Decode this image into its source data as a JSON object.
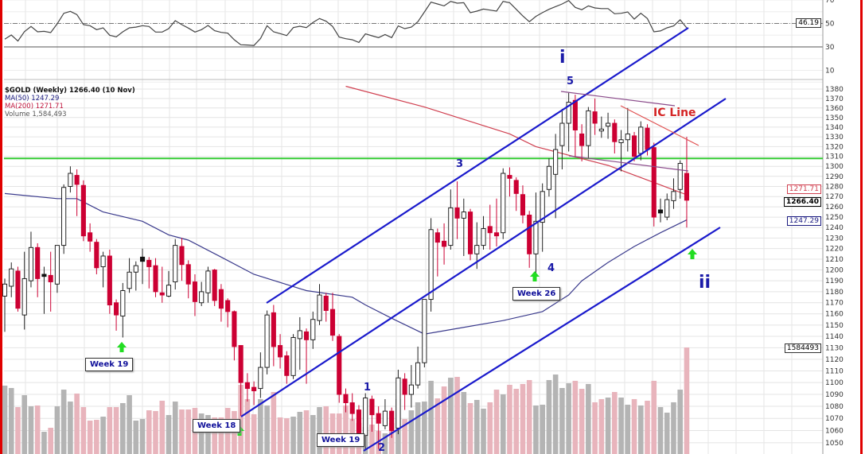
{
  "legend": {
    "title": "$GOLD (Weekly) 1266.40 (10 Nov)",
    "ma50": "MA(50) 1247.29",
    "ma200": "MA(200) 1271.71",
    "volume": "Volume 1,584,493"
  },
  "colors": {
    "up_candle": "#ffffff",
    "down_candle": "#cc0033",
    "ma50": "#3a3a8c",
    "ma200": "#d04050",
    "channel": "#1a1acc",
    "resistance": "#33cc33",
    "ic_line": "#e05050",
    "triangle": "#8a4a8a",
    "volume_up": "#b4b4b4",
    "volume_down": "#e8b4bc",
    "border": "#e00000"
  },
  "annotations": {
    "wave_i": "i",
    "wave_5": "5",
    "wave_3": "3",
    "wave_1": "1",
    "wave_2": "2",
    "wave_4": "4",
    "wave_ii": "ii",
    "ic_line": "IC Line",
    "week19a": "Week 19",
    "week18": "Week 18",
    "week19b": "Week 19",
    "week26": "Week 26"
  },
  "value_labels": {
    "rsi": "46.19",
    "ma200": "1271.71",
    "close": "1266.40",
    "ma50": "1247.29",
    "volume": "1584493"
  },
  "chart_data": {
    "type": "candlestick",
    "title": "$GOLD (Weekly) 1266.40 (10 Nov)",
    "price_axis": {
      "scale": "log",
      "range": [
        1045,
        1385
      ],
      "ticks": [
        1380,
        1370,
        1360,
        1350,
        1340,
        1330,
        1320,
        1310,
        1300,
        1290,
        1280,
        1270,
        1260,
        1250,
        1240,
        1230,
        1220,
        1210,
        1200,
        1190,
        1180,
        1170,
        1160,
        1150,
        1140,
        1130,
        1120,
        1110,
        1100,
        1090,
        1080,
        1070,
        1060,
        1050
      ]
    },
    "rsi_axis": {
      "ticks": [
        70,
        50,
        30,
        10
      ]
    },
    "grid": true,
    "legend_position": "top-left",
    "ohlc": [
      [
        1176,
        1192,
        1144,
        1187
      ],
      [
        1185,
        1207,
        1175,
        1201
      ],
      [
        1199,
        1203,
        1162,
        1165
      ],
      [
        1159,
        1217,
        1146,
        1192
      ],
      [
        1190,
        1236,
        1184,
        1221
      ],
      [
        1221,
        1225,
        1175,
        1192
      ],
      [
        1196,
        1203,
        1160,
        1194
      ],
      [
        1195,
        1217,
        1162,
        1189
      ],
      [
        1187,
        1223,
        1179,
        1223
      ],
      [
        1223,
        1282,
        1215,
        1279
      ],
      [
        1280,
        1300,
        1274,
        1293
      ],
      [
        1291,
        1297,
        1251,
        1282
      ],
      [
        1281,
        1286,
        1227,
        1232
      ],
      [
        1235,
        1244,
        1217,
        1227
      ],
      [
        1226,
        1229,
        1196,
        1202
      ],
      [
        1203,
        1217,
        1184,
        1213
      ],
      [
        1213,
        1219,
        1160,
        1168
      ],
      [
        1170,
        1173,
        1145,
        1159
      ],
      [
        1158,
        1188,
        1139,
        1181
      ],
      [
        1183,
        1211,
        1179,
        1198
      ],
      [
        1198,
        1208,
        1181,
        1204
      ],
      [
        1212,
        1220,
        1187,
        1208
      ],
      [
        1209,
        1212,
        1183,
        1203
      ],
      [
        1204,
        1211,
        1175,
        1180
      ],
      [
        1179,
        1203,
        1170,
        1177
      ],
      [
        1176,
        1199,
        1175,
        1186
      ],
      [
        1189,
        1229,
        1182,
        1223
      ],
      [
        1222,
        1230,
        1190,
        1205
      ],
      [
        1205,
        1209,
        1174,
        1187
      ],
      [
        1189,
        1196,
        1158,
        1171
      ],
      [
        1170,
        1189,
        1167,
        1180
      ],
      [
        1179,
        1203,
        1170,
        1199
      ],
      [
        1200,
        1201,
        1167,
        1172
      ],
      [
        1182,
        1187,
        1153,
        1165
      ],
      [
        1172,
        1174,
        1148,
        1162
      ],
      [
        1162,
        1163,
        1119,
        1131
      ],
      [
        1132,
        1132,
        1072,
        1100
      ],
      [
        1100,
        1108,
        1084,
        1095
      ],
      [
        1096,
        1101,
        1081,
        1093
      ],
      [
        1095,
        1126,
        1087,
        1113
      ],
      [
        1113,
        1163,
        1107,
        1159
      ],
      [
        1161,
        1168,
        1114,
        1131
      ],
      [
        1132,
        1142,
        1112,
        1122
      ],
      [
        1123,
        1127,
        1099,
        1106
      ],
      [
        1106,
        1142,
        1103,
        1139
      ],
      [
        1138,
        1157,
        1111,
        1145
      ],
      [
        1144,
        1147,
        1099,
        1137
      ],
      [
        1137,
        1162,
        1129,
        1155
      ],
      [
        1154,
        1187,
        1150,
        1177
      ],
      [
        1176,
        1179,
        1153,
        1163
      ],
      [
        1164,
        1179,
        1136,
        1141
      ],
      [
        1140,
        1142,
        1083,
        1090
      ],
      [
        1090,
        1095,
        1075,
        1083
      ],
      [
        1083,
        1091,
        1068,
        1074
      ],
      [
        1077,
        1081,
        1049,
        1056
      ],
      [
        1056,
        1091,
        1045,
        1087
      ],
      [
        1086,
        1089,
        1059,
        1073
      ],
      [
        1074,
        1080,
        1045,
        1066
      ],
      [
        1064,
        1086,
        1061,
        1076
      ],
      [
        1076,
        1079,
        1054,
        1060
      ],
      [
        1062,
        1111,
        1057,
        1104
      ],
      [
        1103,
        1108,
        1077,
        1090
      ],
      [
        1090,
        1115,
        1079,
        1098
      ],
      [
        1098,
        1131,
        1095,
        1117
      ],
      [
        1117,
        1173,
        1113,
        1173
      ],
      [
        1173,
        1249,
        1162,
        1238
      ],
      [
        1235,
        1239,
        1194,
        1226
      ],
      [
        1227,
        1244,
        1205,
        1222
      ],
      [
        1223,
        1277,
        1219,
        1259
      ],
      [
        1259,
        1285,
        1229,
        1249
      ],
      [
        1249,
        1268,
        1213,
        1255
      ],
      [
        1255,
        1258,
        1209,
        1215
      ],
      [
        1215,
        1245,
        1201,
        1223
      ],
      [
        1223,
        1251,
        1219,
        1239
      ],
      [
        1241,
        1262,
        1219,
        1235
      ],
      [
        1235,
        1268,
        1222,
        1232
      ],
      [
        1235,
        1298,
        1229,
        1293
      ],
      [
        1291,
        1299,
        1270,
        1288
      ],
      [
        1286,
        1289,
        1256,
        1273
      ],
      [
        1272,
        1281,
        1244,
        1252
      ],
      [
        1252,
        1256,
        1202,
        1215
      ],
      [
        1215,
        1274,
        1196,
        1246
      ],
      [
        1245,
        1283,
        1217,
        1275
      ],
      [
        1277,
        1308,
        1270,
        1300
      ],
      [
        1292,
        1333,
        1249,
        1317
      ],
      [
        1321,
        1359,
        1297,
        1344
      ],
      [
        1344,
        1376,
        1315,
        1366
      ],
      [
        1368,
        1374,
        1309,
        1337
      ],
      [
        1333,
        1343,
        1305,
        1321
      ],
      [
        1321,
        1361,
        1308,
        1357
      ],
      [
        1356,
        1370,
        1332,
        1344
      ],
      [
        1336,
        1351,
        1329,
        1338
      ],
      [
        1341,
        1355,
        1328,
        1344
      ],
      [
        1344,
        1348,
        1313,
        1325
      ],
      [
        1324,
        1337,
        1295,
        1327
      ],
      [
        1327,
        1360,
        1315,
        1333
      ],
      [
        1331,
        1335,
        1305,
        1310
      ],
      [
        1313,
        1346,
        1306,
        1340
      ],
      [
        1339,
        1343,
        1311,
        1317
      ],
      [
        1319,
        1324,
        1241,
        1250
      ],
      [
        1257,
        1268,
        1245,
        1254
      ],
      [
        1250,
        1273,
        1247,
        1267
      ],
      [
        1266,
        1288,
        1258,
        1275
      ],
      [
        1277,
        1306,
        1268,
        1303
      ],
      [
        1293,
        1330,
        1240,
        1266.4
      ]
    ],
    "volume": [
      1021000,
      986000,
      704000,
      880000,
      716000,
      728000,
      340000,
      399000,
      716000,
      962000,
      786000,
      904000,
      704000,
      505000,
      516000,
      563000,
      704000,
      704000,
      763000,
      880000,
      505000,
      528000,
      657000,
      646000,
      798000,
      587000,
      786000,
      669000,
      669000,
      692000,
      610000,
      587000,
      552000,
      552000,
      692000,
      646000,
      1033000,
      822000,
      599000,
      822000,
      728000,
      927000,
      552000,
      540000,
      563000,
      634000,
      657000,
      587000,
      704000,
      716000,
      610000,
      610000,
      728000,
      528000,
      469000,
      411000,
      446000,
      352000,
      317000,
      469000,
      822000,
      528000,
      657000,
      775000,
      786000,
      1092000,
      833000,
      1009000,
      1138000,
      1150000,
      927000,
      763000,
      810000,
      681000,
      775000,
      962000,
      892000,
      1033000,
      974000,
      1045000,
      1103000,
      728000,
      739000,
      1103000,
      1185000,
      986000,
      1056000,
      1092000,
      974000,
      1045000,
      775000,
      822000,
      845000,
      927000,
      845000,
      739000,
      822000,
      728000,
      798000,
      1092000,
      704000,
      622000,
      775000,
      962000,
      1584493
    ],
    "ma50": [
      [
        0,
        1273
      ],
      [
        8,
        1268
      ],
      [
        11,
        1268
      ],
      [
        15,
        1255
      ],
      [
        21,
        1246
      ],
      [
        25,
        1233
      ],
      [
        28,
        1228
      ],
      [
        33,
        1212
      ],
      [
        38,
        1196
      ],
      [
        46,
        1181
      ],
      [
        53,
        1175
      ],
      [
        55,
        1168
      ],
      [
        59,
        1156
      ],
      [
        64,
        1142
      ],
      [
        69,
        1147
      ],
      [
        76,
        1154
      ],
      [
        82,
        1162
      ],
      [
        86,
        1177
      ],
      [
        88,
        1190
      ],
      [
        92,
        1207
      ],
      [
        96,
        1222
      ],
      [
        100,
        1235
      ],
      [
        104,
        1247.29
      ]
    ],
    "ma200": [
      [
        52,
        1383
      ],
      [
        64,
        1361
      ],
      [
        77,
        1333
      ],
      [
        81,
        1320
      ],
      [
        92,
        1301
      ],
      [
        101,
        1279
      ],
      [
        104,
        1271.71
      ]
    ],
    "rsi": [
      36.6,
      40.2,
      35.0,
      43,
      47.4,
      42.9,
      43.3,
      42.2,
      49.7,
      58.7,
      60.3,
      57.6,
      49.0,
      48.1,
      44.7,
      46.3,
      40.0,
      38.6,
      42.9,
      46.3,
      46.9,
      48.1,
      47.4,
      42.7,
      42.7,
      45.6,
      52.4,
      49.0,
      46.1,
      42.7,
      44.7,
      48.3,
      43.8,
      42.4,
      41.7,
      36.1,
      31.8,
      31.6,
      31.2,
      37.2,
      48.1,
      42.9,
      41.3,
      39.7,
      46.5,
      47.6,
      46.5,
      50.8,
      54.2,
      51.9,
      47.4,
      38.4,
      37.0,
      36.1,
      33.8,
      41.1,
      39.5,
      37.9,
      40.6,
      37.9,
      47.9,
      45.6,
      46.9,
      51.5,
      59.8,
      68.2,
      66.6,
      65.0,
      68.8,
      67.3,
      67.7,
      59.2,
      60.5,
      62.3,
      61.4,
      60.5,
      68.8,
      67.7,
      62.1,
      56.4,
      51.5,
      56.0,
      59.2,
      62.1,
      64.4,
      66.6,
      69.5,
      63.7,
      61.7,
      65.0,
      63.2,
      62.7,
      62.7,
      58.3,
      58.7,
      59.8,
      53.7,
      58.7,
      54.2,
      42.9,
      43.6,
      46.3,
      47.9,
      53.1,
      46.19
    ],
    "resistance_level": 1308
  }
}
